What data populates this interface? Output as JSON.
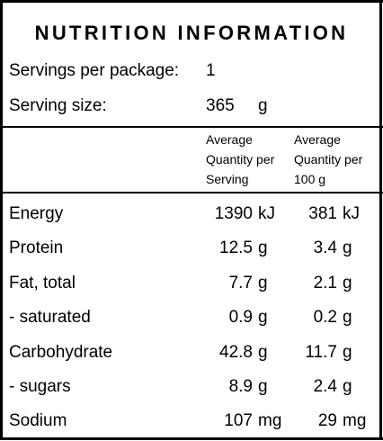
{
  "title": "NUTRITION INFORMATION",
  "servings": {
    "label": "Servings per package:",
    "value": "1"
  },
  "serving_size": {
    "label": "Serving size:",
    "value": "365",
    "unit": "g"
  },
  "headers": {
    "per_serving": [
      "Average",
      "Quantity per",
      "Serving"
    ],
    "per_100g": [
      "Average",
      "Quantity per",
      "100 g"
    ]
  },
  "rows": [
    {
      "label": "Energy",
      "serving": "1390",
      "serving_unit": "kJ",
      "per100": "381",
      "per100_unit": "kJ"
    },
    {
      "label": "Protein",
      "serving": "12.5",
      "serving_unit": "g",
      "per100": "3.4",
      "per100_unit": "g"
    },
    {
      "label": "Fat, total",
      "serving": "7.7",
      "serving_unit": "g",
      "per100": "2.1",
      "per100_unit": "g"
    },
    {
      "label": "- saturated",
      "serving": "0.9",
      "serving_unit": "g",
      "per100": "0.2",
      "per100_unit": "g"
    },
    {
      "label": "Carbohydrate",
      "serving": "42.8",
      "serving_unit": "g",
      "per100": "11.7",
      "per100_unit": "g"
    },
    {
      "label": "- sugars",
      "serving": "8.9",
      "serving_unit": "g",
      "per100": "2.4",
      "per100_unit": "g"
    },
    {
      "label": "Sodium",
      "serving": "107",
      "serving_unit": "mg",
      "per100": "29",
      "per100_unit": "mg"
    }
  ]
}
